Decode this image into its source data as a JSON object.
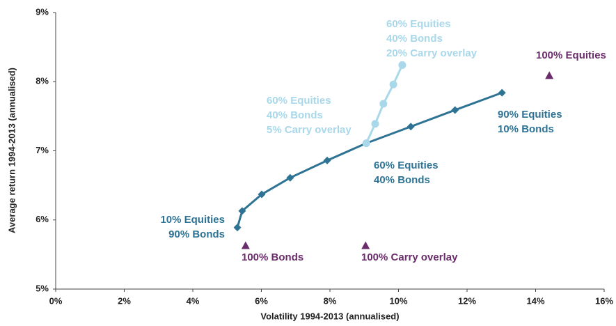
{
  "chart_data": {
    "type": "line",
    "x_label": "Volatility 1994-2013 (annualised)",
    "y_label": "Average return 1994-2013 (annualised)",
    "xlim": [
      0,
      16
    ],
    "xticks": [
      {
        "value": 0,
        "label": "0%"
      },
      {
        "value": 2,
        "label": "2%"
      },
      {
        "value": 4,
        "label": "4%"
      },
      {
        "value": 6,
        "label": "6%"
      },
      {
        "value": 8,
        "label": "8%"
      },
      {
        "value": 10,
        "label": "10%"
      },
      {
        "value": 12,
        "label": "12%"
      },
      {
        "value": 14,
        "label": "14%"
      },
      {
        "value": 16,
        "label": "16%"
      }
    ],
    "ylim": [
      5,
      9
    ],
    "yticks": [
      {
        "value": 5,
        "label": "5%"
      },
      {
        "value": 6,
        "label": "6%"
      },
      {
        "value": 7,
        "label": "7%"
      },
      {
        "value": 8,
        "label": "8%"
      },
      {
        "value": 9,
        "label": "9%"
      }
    ],
    "series": [
      {
        "color": "#2e7394",
        "marker": "diamond",
        "line": true,
        "x": [
          5.3,
          5.44,
          6.01,
          6.84,
          7.92,
          9.06,
          10.36,
          11.65,
          13.02
        ],
        "values": [
          5.89,
          6.13,
          6.37,
          6.61,
          6.86,
          7.11,
          7.35,
          7.59,
          7.84
        ]
      },
      {
        "color": "#a8d8ea",
        "marker": "circle",
        "line": true,
        "x": [
          9.06,
          9.32,
          9.56,
          9.85,
          10.11
        ],
        "values": [
          7.11,
          7.39,
          7.68,
          7.96,
          8.24
        ]
      },
      {
        "color": "#6b2c6b",
        "marker": "triangle",
        "line": false,
        "x": [
          5.54,
          9.04,
          14.4
        ],
        "values": [
          5.63,
          5.63,
          8.09
        ],
        "labels": [
          "100% Bonds",
          "100% Carry overlay",
          "100% Equities"
        ]
      }
    ],
    "annotations": [
      {
        "color": "#a8d8ea",
        "lines": [
          "60% Equities",
          "40% Bonds",
          "20% Carry overlay"
        ]
      },
      {
        "color": "#a8d8ea",
        "lines": [
          "60% Equities",
          "40% Bonds",
          "5% Carry overlay"
        ]
      },
      {
        "color": "#2e7394",
        "lines": [
          "90% Equities",
          "10% Bonds"
        ]
      },
      {
        "color": "#2e7394",
        "lines": [
          "60% Equities",
          "40% Bonds"
        ]
      },
      {
        "color": "#2e7394",
        "lines": [
          "10% Equities",
          "90% Bonds"
        ]
      }
    ]
  }
}
